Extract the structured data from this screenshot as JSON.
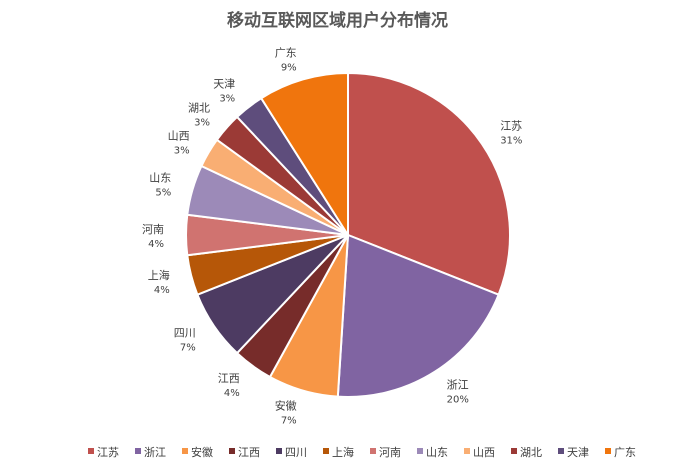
{
  "chart_data": {
    "type": "pie",
    "title": "移动互联网区域用户分布情况",
    "slices": [
      {
        "name": "江苏",
        "value": 31,
        "label": "31%",
        "color": "#C0504D"
      },
      {
        "name": "浙江",
        "value": 20,
        "label": "20%",
        "color": "#8064A2"
      },
      {
        "name": "安徽",
        "value": 7,
        "label": "7%",
        "color": "#F79646"
      },
      {
        "name": "江西",
        "value": 4,
        "label": "4%",
        "color": "#772C2A"
      },
      {
        "name": "四川",
        "value": 7,
        "label": "7%",
        "color": "#4D3B62"
      },
      {
        "name": "上海",
        "value": 4,
        "label": "4%",
        "color": "#B65708"
      },
      {
        "name": "河南",
        "value": 4,
        "label": "4%",
        "color": "#D07370"
      },
      {
        "name": "山东",
        "value": 5,
        "label": "5%",
        "color": "#9C8AB8"
      },
      {
        "name": "山西",
        "value": 3,
        "label": "3%",
        "color": "#F9AE73"
      },
      {
        "name": "湖北",
        "value": 3,
        "label": "3%",
        "color": "#9B3A36"
      },
      {
        "name": "天津",
        "value": 3,
        "label": "3%",
        "color": "#5E4D7C"
      },
      {
        "name": "广东",
        "value": 9,
        "label": "9%",
        "color": "#F0750D"
      }
    ],
    "legend_position": "bottom"
  }
}
